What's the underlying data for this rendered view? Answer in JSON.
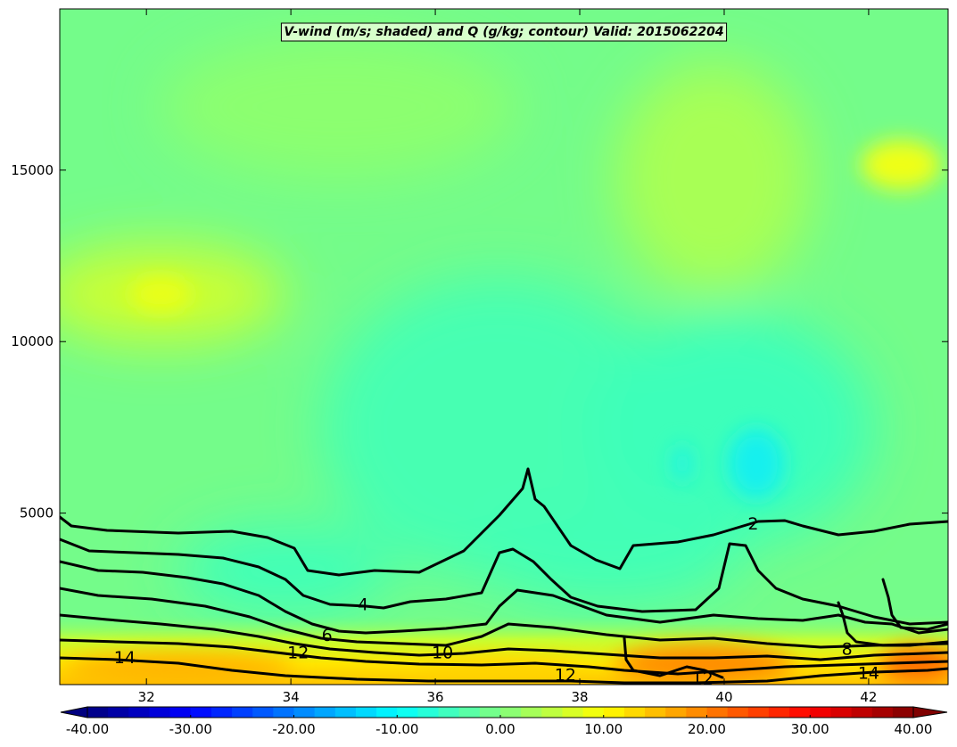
{
  "chart_data": {
    "type": "heatmap",
    "title": "V-wind (m/s; shaded) and Q (g/kg; contour) Valid: 2015062204",
    "xlim": [
      30.8,
      43.1
    ],
    "ylim": [
      0,
      19700
    ],
    "x_ticks": [
      32,
      34,
      36,
      38,
      40,
      42
    ],
    "y_ticks": [
      5000,
      10000,
      15000
    ],
    "grid": false,
    "colormap": "jet",
    "colorbar": {
      "orientation": "horizontal",
      "range": [
        -40,
        40
      ],
      "levels": 40,
      "extend": "both",
      "ticks": [
        "-40.00",
        "-30.00",
        "-20.00",
        "-10.00",
        "0.00",
        "10.00",
        "20.00",
        "30.00",
        "40.00"
      ]
    },
    "shaded_field": {
      "name": "V-wind",
      "units": "m/s",
      "background_value": 3,
      "features": [
        {
          "x": 32.2,
          "y": 11200,
          "value": 10
        },
        {
          "x": 42.2,
          "y": 15200,
          "value": 11
        },
        {
          "x": 39.9,
          "y": 6300,
          "value": -8
        },
        {
          "x": 38.2,
          "y": 3600,
          "value": -4
        },
        {
          "x": 34.2,
          "y": 2400,
          "value": -6
        },
        {
          "x": 33.2,
          "y": 600,
          "value": 17
        },
        {
          "x": 37.4,
          "y": 600,
          "value": 12
        },
        {
          "x": 40.0,
          "y": 500,
          "value": 22
        },
        {
          "x": 42.8,
          "y": 500,
          "value": 26
        }
      ]
    },
    "contours": {
      "name": "Q",
      "units": "g/kg",
      "levels": [
        2,
        4,
        6,
        8,
        10,
        12,
        14
      ],
      "labels": [
        {
          "text": "2",
          "x": 40.4,
          "y": 4700
        },
        {
          "text": "4",
          "x": 35.0,
          "y": 2350
        },
        {
          "text": "6",
          "x": 34.5,
          "y": 1450
        },
        {
          "text": "8",
          "x": 41.7,
          "y": 1050
        },
        {
          "text": "10",
          "x": 36.1,
          "y": 950
        },
        {
          "text": "12",
          "x": 34.1,
          "y": 950
        },
        {
          "text": "12",
          "x": 37.8,
          "y": 300
        },
        {
          "text": "12",
          "x": 39.7,
          "y": 200
        },
        {
          "text": "14",
          "x": 31.7,
          "y": 800
        },
        {
          "text": "14",
          "x": 42.0,
          "y": 350
        }
      ]
    }
  }
}
